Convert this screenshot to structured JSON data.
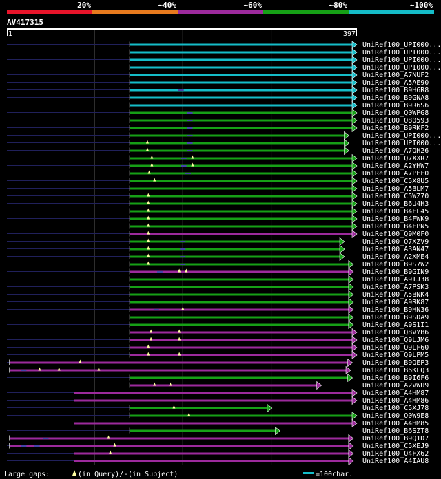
{
  "chart_data": {
    "type": "alignment-overview",
    "query_id": "AV417315",
    "query_start": "1",
    "query_end": "397",
    "query_length": 397,
    "identity_scale": [
      {
        "label": "20%",
        "color": "#e8142a"
      },
      {
        "label": "~40%",
        "color": "#e87a1e"
      },
      {
        "label": "~60%",
        "color": "#9c2a9c"
      },
      {
        "label": "~80%",
        "color": "#16a016"
      },
      {
        "label": "~100%",
        "color": "#15bcc8"
      }
    ],
    "gridlines": [
      100,
      200,
      300
    ],
    "legend": {
      "gaps_prefix": "Large gaps: ",
      "query_gap_text": "(in Query)/",
      "subject_gap_marker": "-",
      "subject_gap_text": " (in Subject)",
      "scale_text": "=100char."
    },
    "hits": [
      {
        "name": "UniRef100_UPI000...",
        "start": 140,
        "end": 397,
        "color": "#15bcc8",
        "arrow": "right",
        "qgaps": [],
        "sgaps": []
      },
      {
        "name": "UniRef100_UPI000...",
        "start": 140,
        "end": 397,
        "color": "#15bcc8",
        "arrow": "right",
        "qgaps": [],
        "sgaps": []
      },
      {
        "name": "UniRef100_UPI000...",
        "start": 140,
        "end": 397,
        "color": "#15bcc8",
        "arrow": "right",
        "qgaps": [],
        "sgaps": []
      },
      {
        "name": "UniRef100_UPI000...",
        "start": 140,
        "end": 397,
        "color": "#15bcc8",
        "arrow": "right",
        "qgaps": [],
        "sgaps": []
      },
      {
        "name": "UniRef100_A7NUF2",
        "start": 140,
        "end": 397,
        "color": "#15bcc8",
        "arrow": "right",
        "qgaps": [],
        "sgaps": []
      },
      {
        "name": "UniRef100_A5AE90",
        "start": 140,
        "end": 397,
        "color": "#15bcc8",
        "arrow": "right",
        "qgaps": [],
        "sgaps": []
      },
      {
        "name": "UniRef100_B9H6R8",
        "start": 140,
        "end": 397,
        "color": "#15bcc8",
        "arrow": "right",
        "qgaps": [],
        "sgaps": [
          198
        ]
      },
      {
        "name": "UniRef100_B9GNA8",
        "start": 140,
        "end": 397,
        "color": "#15bcc8",
        "arrow": "right",
        "qgaps": [],
        "sgaps": []
      },
      {
        "name": "UniRef100_B9R6S6",
        "start": 140,
        "end": 397,
        "color": "#15bcc8",
        "arrow": "right",
        "qgaps": [],
        "sgaps": []
      },
      {
        "name": "UniRef100_Q0WPG8",
        "start": 140,
        "end": 397,
        "color": "#16a016",
        "arrow": "right",
        "qgaps": [],
        "sgaps": [
          208
        ]
      },
      {
        "name": "UniRef100_O80593",
        "start": 140,
        "end": 397,
        "color": "#16a016",
        "arrow": "right",
        "qgaps": [],
        "sgaps": [
          208
        ]
      },
      {
        "name": "UniRef100_B9RKF2",
        "start": 140,
        "end": 397,
        "color": "#16a016",
        "arrow": "right",
        "qgaps": [],
        "sgaps": [
          208
        ]
      },
      {
        "name": "UniRef100_UPI000...",
        "start": 140,
        "end": 388,
        "color": "#16a016",
        "arrow": "right",
        "qgaps": [],
        "sgaps": [
          208
        ]
      },
      {
        "name": "UniRef100_UPI000...",
        "start": 140,
        "end": 388,
        "color": "#16a016",
        "arrow": "right",
        "qgaps": [
          160
        ],
        "sgaps": [
          208
        ]
      },
      {
        "name": "UniRef100_A7QH26",
        "start": 140,
        "end": 388,
        "color": "#16a016",
        "arrow": "right",
        "qgaps": [
          160
        ],
        "sgaps": [
          208
        ]
      },
      {
        "name": "UniRef100_Q7XXR7",
        "start": 140,
        "end": 397,
        "color": "#16a016",
        "arrow": "right",
        "qgaps": [
          165,
          211
        ],
        "sgaps": [
          201
        ]
      },
      {
        "name": "UniRef100_A2YHW7",
        "start": 140,
        "end": 397,
        "color": "#16a016",
        "arrow": "right",
        "qgaps": [
          165,
          211
        ],
        "sgaps": [
          201
        ]
      },
      {
        "name": "UniRef100_A7PEF0",
        "start": 140,
        "end": 397,
        "color": "#16a016",
        "arrow": "right",
        "qgaps": [
          162
        ],
        "sgaps": [
          206
        ]
      },
      {
        "name": "UniRef100_C5X8U5",
        "start": 140,
        "end": 397,
        "color": "#16a016",
        "arrow": "right",
        "qgaps": [
          168
        ],
        "sgaps": []
      },
      {
        "name": "UniRef100_A5BLM7",
        "start": 140,
        "end": 397,
        "color": "#16a016",
        "arrow": "right",
        "qgaps": [],
        "sgaps": []
      },
      {
        "name": "UniRef100_C5WZ70",
        "start": 140,
        "end": 397,
        "color": "#16a016",
        "arrow": "right",
        "qgaps": [
          161
        ],
        "sgaps": []
      },
      {
        "name": "UniRef100_B6U4H3",
        "start": 140,
        "end": 397,
        "color": "#16a016",
        "arrow": "right",
        "qgaps": [
          161
        ],
        "sgaps": []
      },
      {
        "name": "UniRef100_B4FL45",
        "start": 140,
        "end": 397,
        "color": "#16a016",
        "arrow": "right",
        "qgaps": [
          161
        ],
        "sgaps": []
      },
      {
        "name": "UniRef100_B4FWK9",
        "start": 140,
        "end": 397,
        "color": "#16a016",
        "arrow": "right",
        "qgaps": [
          161
        ],
        "sgaps": []
      },
      {
        "name": "UniRef100_B4FPN5",
        "start": 140,
        "end": 397,
        "color": "#16a016",
        "arrow": "right",
        "qgaps": [
          161
        ],
        "sgaps": []
      },
      {
        "name": "UniRef100_Q9M0F0",
        "start": 140,
        "end": 397,
        "color": "#9c2a9c",
        "arrow": "right",
        "qgaps": [
          161
        ],
        "sgaps": []
      },
      {
        "name": "UniRef100_Q7XZV9",
        "start": 140,
        "end": 383,
        "color": "#16a016",
        "arrow": "right",
        "qgaps": [
          161
        ],
        "sgaps": [
          200
        ]
      },
      {
        "name": "UniRef100_A3AN47",
        "start": 140,
        "end": 383,
        "color": "#16a016",
        "arrow": "right",
        "qgaps": [
          161
        ],
        "sgaps": [
          200
        ]
      },
      {
        "name": "UniRef100_A2XME4",
        "start": 140,
        "end": 383,
        "color": "#16a016",
        "arrow": "right",
        "qgaps": [
          161
        ],
        "sgaps": [
          200
        ]
      },
      {
        "name": "UniRef100_B9S7W2",
        "start": 140,
        "end": 393,
        "color": "#16a016",
        "arrow": "right",
        "qgaps": [
          161
        ],
        "sgaps": [
          200
        ]
      },
      {
        "name": "UniRef100_B9GIN9",
        "start": 140,
        "end": 393,
        "color": "#9c2a9c",
        "arrow": "right",
        "qgaps": [
          196,
          204
        ],
        "sgaps": [
          174
        ]
      },
      {
        "name": "UniRef100_A9TJ38",
        "start": 140,
        "end": 393,
        "color": "#16a016",
        "arrow": "right",
        "qgaps": [],
        "sgaps": []
      },
      {
        "name": "UniRef100_A7PSK3",
        "start": 140,
        "end": 393,
        "color": "#16a016",
        "arrow": "right",
        "qgaps": [],
        "sgaps": []
      },
      {
        "name": "UniRef100_A5BNK4",
        "start": 140,
        "end": 393,
        "color": "#16a016",
        "arrow": "right",
        "qgaps": [],
        "sgaps": []
      },
      {
        "name": "UniRef100_A9RK87",
        "start": 140,
        "end": 393,
        "color": "#16a016",
        "arrow": "right",
        "qgaps": [],
        "sgaps": []
      },
      {
        "name": "UniRef100_B9HN36",
        "start": 140,
        "end": 393,
        "color": "#9c2a9c",
        "arrow": "right",
        "qgaps": [
          200
        ],
        "sgaps": [
          170
        ]
      },
      {
        "name": "UniRef100_B9SDA9",
        "start": 140,
        "end": 393,
        "color": "#16a016",
        "arrow": "right",
        "qgaps": [],
        "sgaps": []
      },
      {
        "name": "UniRef100_A9S1I1",
        "start": 140,
        "end": 393,
        "color": "#16a016",
        "arrow": "right",
        "qgaps": [],
        "sgaps": []
      },
      {
        "name": "UniRef100_Q8VYB6",
        "start": 140,
        "end": 397,
        "color": "#9c2a9c",
        "arrow": "right",
        "qgaps": [
          164,
          196
        ],
        "sgaps": []
      },
      {
        "name": "UniRef100_Q9LJM6",
        "start": 140,
        "end": 397,
        "color": "#9c2a9c",
        "arrow": "right",
        "qgaps": [
          164,
          196
        ],
        "sgaps": []
      },
      {
        "name": "UniRef100_Q9LF60",
        "start": 140,
        "end": 397,
        "color": "#9c2a9c",
        "arrow": "right",
        "qgaps": [
          161
        ],
        "sgaps": []
      },
      {
        "name": "UniRef100_Q9LPM5",
        "start": 140,
        "end": 397,
        "color": "#9c2a9c",
        "arrow": "right",
        "qgaps": [
          161,
          196
        ],
        "sgaps": []
      },
      {
        "name": "UniRef100_B9QEP3",
        "start": 4,
        "end": 392,
        "color": "#9c2a9c",
        "arrow": "right",
        "qgaps": [
          84
        ],
        "sgaps": []
      },
      {
        "name": "UniRef100_B6KLQ3",
        "start": 4,
        "end": 390,
        "color": "#9c2a9c",
        "arrow": "right",
        "qgaps": [
          38,
          60,
          105
        ],
        "sgaps": [
          20
        ]
      },
      {
        "name": "UniRef100_B9I6F6",
        "start": 140,
        "end": 392,
        "color": "#16a016",
        "arrow": "right",
        "qgaps": [],
        "sgaps": []
      },
      {
        "name": "UniRef100_A2VWU9",
        "start": 140,
        "end": 357,
        "color": "#9c2a9c",
        "arrow": "right",
        "qgaps": [
          168,
          186
        ],
        "sgaps": []
      },
      {
        "name": "UniRef100_A4HM87",
        "start": 77,
        "end": 397,
        "color": "#9c2a9c",
        "arrow": "right",
        "qgaps": [],
        "sgaps": []
      },
      {
        "name": "UniRef100_A4HM86",
        "start": 77,
        "end": 397,
        "color": "#9c2a9c",
        "arrow": "right",
        "qgaps": [],
        "sgaps": []
      },
      {
        "name": "UniRef100_C5XJ78",
        "start": 140,
        "end": 301,
        "color": "#16a016",
        "arrow": "right",
        "qgaps": [
          190
        ],
        "sgaps": []
      },
      {
        "name": "UniRef100_Q0W9E8",
        "start": 140,
        "end": 397,
        "color": "#16a016",
        "arrow": "right",
        "qgaps": [
          207
        ],
        "sgaps": []
      },
      {
        "name": "UniRef100_A4HM85",
        "start": 77,
        "end": 397,
        "color": "#9c2a9c",
        "arrow": "right",
        "qgaps": [],
        "sgaps": []
      },
      {
        "name": "UniRef100_B6SZT8",
        "start": 140,
        "end": 310,
        "color": "#16a016",
        "arrow": "right",
        "qgaps": [],
        "sgaps": []
      },
      {
        "name": "UniRef100_B9Q1D7",
        "start": 4,
        "end": 393,
        "color": "#9c2a9c",
        "arrow": "right",
        "qgaps": [
          116
        ],
        "sgaps": [
          45
        ]
      },
      {
        "name": "UniRef100_C5XEJ9",
        "start": 4,
        "end": 393,
        "color": "#9c2a9c",
        "arrow": "right",
        "qgaps": [
          123
        ],
        "sgaps": [
          20,
          35
        ]
      },
      {
        "name": "UniRef100_Q4FX62",
        "start": 77,
        "end": 393,
        "color": "#9c2a9c",
        "arrow": "right",
        "qgaps": [
          118
        ],
        "sgaps": []
      },
      {
        "name": "UniRef100_A4IAU8",
        "start": 77,
        "end": 393,
        "color": "#9c2a9c",
        "arrow": "right",
        "qgaps": [],
        "sgaps": []
      }
    ]
  }
}
